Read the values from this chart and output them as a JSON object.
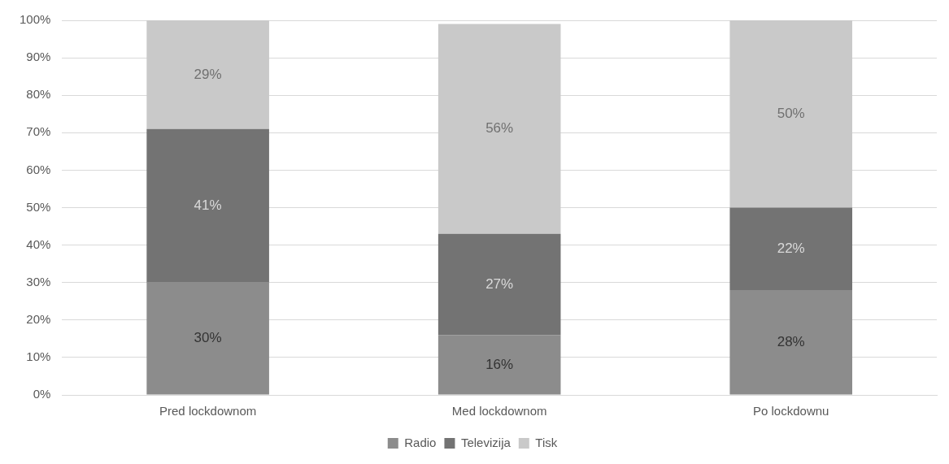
{
  "chart_data": {
    "type": "bar",
    "stacked": true,
    "categories": [
      "Pred lockdownom",
      "Med lockdownom",
      "Po lockdownu"
    ],
    "series": [
      {
        "name": "Radio",
        "color": "#8c8c8c",
        "values": [
          30,
          16,
          28
        ],
        "value_labels": [
          "30%",
          "16%",
          "28%"
        ]
      },
      {
        "name": "Televizija",
        "color": "#737373",
        "values": [
          41,
          27,
          22
        ],
        "value_labels": [
          "41%",
          "27%",
          "22%"
        ]
      },
      {
        "name": "Tisk",
        "color": "#c9c9c9",
        "values": [
          29,
          56,
          50
        ],
        "value_labels": [
          "29%",
          "56%",
          "50%"
        ]
      }
    ],
    "ylim": [
      0,
      100
    ],
    "yticks": [
      {
        "value": 0,
        "label": "0%"
      },
      {
        "value": 10,
        "label": "10%"
      },
      {
        "value": 20,
        "label": "20%"
      },
      {
        "value": 30,
        "label": "30%"
      },
      {
        "value": 40,
        "label": "40%"
      },
      {
        "value": 50,
        "label": "50%"
      },
      {
        "value": 60,
        "label": "60%"
      },
      {
        "value": 70,
        "label": "70%"
      },
      {
        "value": 80,
        "label": "80%"
      },
      {
        "value": 90,
        "label": "90%"
      },
      {
        "value": 100,
        "label": "100%"
      }
    ],
    "grid": "y",
    "legend": "bottom"
  }
}
